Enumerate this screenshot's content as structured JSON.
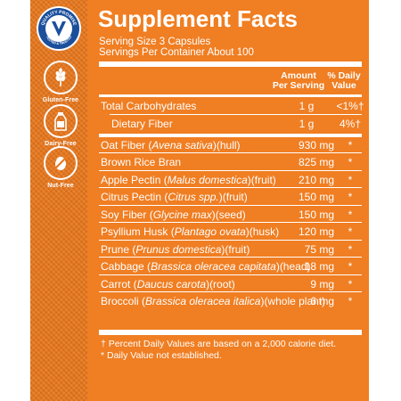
{
  "badge": {
    "top": "QUALITY PROMISE",
    "bottom": "TESTED & TRUSTED"
  },
  "icons": [
    {
      "name": "wheat-icon",
      "label": "Gluten-Free"
    },
    {
      "name": "milk-bottle-icon",
      "label": "Dairy-Free"
    },
    {
      "name": "nut-icon",
      "label": "Nut-Free"
    }
  ],
  "facts": {
    "title": "Supplement Facts",
    "serving_size": "Serving Size 3 Capsules",
    "servings_per": "Servings Per Container About 100",
    "col_amount_1": "Amount",
    "col_amount_2": "Per Serving",
    "col_dv_1": "% Daily",
    "col_dv_2": "Value",
    "rows": [
      {
        "name": "Total Carbohydrates",
        "amount": "1 g",
        "dv": "<1%†"
      },
      {
        "name": "Dietary Fiber",
        "amount": "1 g",
        "dv": "4%†"
      },
      {
        "name": "Oat Fiber",
        "latin": "Avena sativa",
        "part": "(hull)",
        "amount": "930 mg",
        "dv": "*"
      },
      {
        "name": "Brown Rice Bran",
        "latin": "",
        "part": "",
        "amount": "825 mg",
        "dv": "*"
      },
      {
        "name": "Apple Pectin",
        "latin": "Malus domestica",
        "part": "(fruit)",
        "amount": "210 mg",
        "dv": "*"
      },
      {
        "name": "Citrus Pectin",
        "latin": "Citrus spp.",
        "part": "(fruit)",
        "amount": "150 mg",
        "dv": "*"
      },
      {
        "name": "Soy Fiber",
        "latin": "Glycine max",
        "part": "(seed)",
        "amount": "150 mg",
        "dv": "*"
      },
      {
        "name": "Psyllium Husk",
        "latin": "Plantago ovata",
        "part": "(husk)",
        "amount": "120 mg",
        "dv": "*"
      },
      {
        "name": "Prune",
        "latin": "Prunus domestica",
        "part": "(fruit)",
        "amount": "75 mg",
        "dv": "*"
      },
      {
        "name": "Cabbage",
        "latin": "Brassica oleracea capitata",
        "part": "(head)",
        "amount": "18 mg",
        "dv": "*"
      },
      {
        "name": "Carrot",
        "latin": "Daucus carota",
        "part": "(root)",
        "amount": "9 mg",
        "dv": "*"
      },
      {
        "name": "Broccoli",
        "latin": "Brassica oleracea italica",
        "part": "(whole plant)",
        "amount": "6 mg",
        "dv": "*"
      }
    ],
    "footnote_1": "† Percent Daily Values are based on a 2,000 calorie diet.",
    "footnote_2": "* Daily Value not established."
  },
  "colors": {
    "orange": "#f07e22",
    "sidebar": "#e9781d",
    "badge_blue": "#1b4f9c"
  }
}
